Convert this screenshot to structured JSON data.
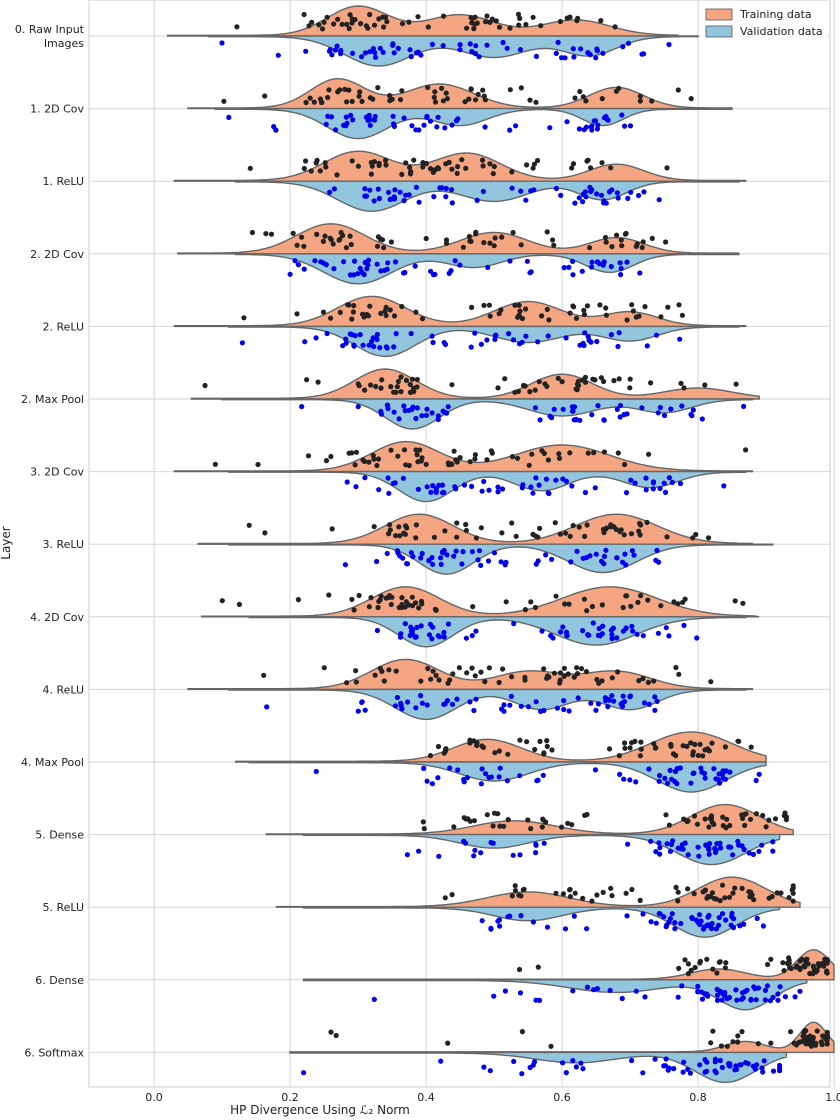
{
  "chart_data": {
    "type": "split-violin",
    "xlabel": "HP Divergence Using ℒ₂ Norm",
    "ylabel": "Layer",
    "xlim": [
      -0.1,
      1.0
    ],
    "xticks": [
      "0.0",
      "0.2",
      "0.4",
      "0.6",
      "0.8",
      "1.0"
    ],
    "grid": true,
    "legend_position": "top-right",
    "series": [
      {
        "name": "Training data",
        "color": "#f4a582",
        "point_color": "#222222"
      },
      {
        "name": "Validation data",
        "color": "#92c5de",
        "point_color": "#0000ee"
      }
    ],
    "layers": [
      {
        "label": "0. Raw Input\nImages",
        "train": {
          "range": [
            0.02,
            0.77
          ],
          "peaks": [
            [
              0.3,
              0.045,
              0.85
            ],
            [
              0.45,
              0.05,
              0.6
            ],
            [
              0.62,
              0.05,
              0.45
            ]
          ]
        },
        "val": {
          "range": [
            0.08,
            0.8
          ],
          "peaks": [
            [
              0.33,
              0.05,
              0.85
            ],
            [
              0.5,
              0.05,
              0.6
            ],
            [
              0.64,
              0.04,
              0.55
            ]
          ]
        }
      },
      {
        "label": "1. 2D Cov",
        "train": {
          "range": [
            0.05,
            0.85
          ],
          "peaks": [
            [
              0.27,
              0.04,
              0.85
            ],
            [
              0.42,
              0.05,
              0.7
            ],
            [
              0.68,
              0.04,
              0.6
            ]
          ]
        },
        "val": {
          "range": [
            0.09,
            0.85
          ],
          "peaks": [
            [
              0.3,
              0.045,
              0.9
            ],
            [
              0.45,
              0.04,
              0.5
            ],
            [
              0.66,
              0.03,
              0.5
            ]
          ]
        }
      },
      {
        "label": "1. ReLU",
        "train": {
          "range": [
            0.03,
            0.87
          ],
          "peaks": [
            [
              0.3,
              0.05,
              0.8
            ],
            [
              0.46,
              0.05,
              0.75
            ],
            [
              0.68,
              0.04,
              0.45
            ]
          ]
        },
        "val": {
          "range": [
            0.12,
            0.86
          ],
          "peaks": [
            [
              0.32,
              0.05,
              0.9
            ],
            [
              0.5,
              0.05,
              0.6
            ],
            [
              0.66,
              0.035,
              0.55
            ]
          ]
        }
      },
      {
        "label": "2. 2D Cov",
        "train": {
          "range": [
            0.035,
            0.86
          ],
          "peaks": [
            [
              0.26,
              0.05,
              0.85
            ],
            [
              0.5,
              0.05,
              0.6
            ],
            [
              0.68,
              0.04,
              0.45
            ]
          ]
        },
        "val": {
          "range": [
            0.12,
            0.86
          ],
          "peaks": [
            [
              0.3,
              0.05,
              0.9
            ],
            [
              0.47,
              0.04,
              0.4
            ],
            [
              0.67,
              0.035,
              0.55
            ]
          ]
        }
      },
      {
        "label": "2. ReLU",
        "train": {
          "range": [
            0.03,
            0.87
          ],
          "peaks": [
            [
              0.32,
              0.05,
              0.85
            ],
            [
              0.55,
              0.05,
              0.7
            ],
            [
              0.7,
              0.04,
              0.4
            ]
          ]
        },
        "val": {
          "range": [
            0.11,
            0.86
          ],
          "peaks": [
            [
              0.34,
              0.045,
              0.95
            ],
            [
              0.55,
              0.05,
              0.5
            ],
            [
              0.7,
              0.04,
              0.45
            ]
          ]
        }
      },
      {
        "label": "2. Max Pool",
        "train": {
          "range": [
            0.055,
            0.89
          ],
          "peaks": [
            [
              0.34,
              0.045,
              0.85
            ],
            [
              0.6,
              0.045,
              0.7
            ],
            [
              0.8,
              0.05,
              0.3
            ]
          ]
        },
        "val": {
          "range": [
            0.1,
            0.88
          ],
          "peaks": [
            [
              0.38,
              0.04,
              0.9
            ],
            [
              0.6,
              0.05,
              0.5
            ],
            [
              0.75,
              0.04,
              0.4
            ]
          ]
        }
      },
      {
        "label": "3. 2D Cov",
        "train": {
          "range": [
            0.03,
            0.88
          ],
          "peaks": [
            [
              0.37,
              0.05,
              0.9
            ],
            [
              0.6,
              0.07,
              0.8
            ]
          ]
        },
        "val": {
          "range": [
            0.11,
            0.87
          ],
          "peaks": [
            [
              0.4,
              0.04,
              0.95
            ],
            [
              0.57,
              0.04,
              0.6
            ],
            [
              0.73,
              0.04,
              0.5
            ]
          ]
        }
      },
      {
        "label": "3. ReLU",
        "train": {
          "range": [
            0.065,
            0.88
          ],
          "peaks": [
            [
              0.39,
              0.05,
              0.85
            ],
            [
              0.68,
              0.06,
              0.85
            ]
          ]
        },
        "val": {
          "range": [
            0.11,
            0.91
          ],
          "peaks": [
            [
              0.43,
              0.04,
              0.9
            ],
            [
              0.66,
              0.05,
              0.85
            ]
          ]
        }
      },
      {
        "label": "4. 2D Cov",
        "train": {
          "range": [
            0.07,
            0.89
          ],
          "peaks": [
            [
              0.37,
              0.05,
              0.95
            ],
            [
              0.67,
              0.07,
              0.95
            ]
          ]
        },
        "val": {
          "range": [
            0.14,
            0.87
          ],
          "peaks": [
            [
              0.4,
              0.04,
              0.85
            ],
            [
              0.65,
              0.06,
              0.8
            ]
          ]
        }
      },
      {
        "label": "4. ReLU",
        "train": {
          "range": [
            0.05,
            0.88
          ],
          "peaks": [
            [
              0.37,
              0.05,
              0.85
            ],
            [
              0.55,
              0.05,
              0.5
            ],
            [
              0.68,
              0.05,
              0.5
            ]
          ]
        },
        "val": {
          "range": [
            0.11,
            0.87
          ],
          "peaks": [
            [
              0.4,
              0.045,
              0.9
            ],
            [
              0.57,
              0.04,
              0.6
            ],
            [
              0.7,
              0.04,
              0.6
            ]
          ]
        }
      },
      {
        "label": "4. Max Pool",
        "train": {
          "range": [
            0.12,
            0.9
          ],
          "peaks": [
            [
              0.49,
              0.05,
              0.6
            ],
            [
              0.79,
              0.06,
              0.8
            ]
          ]
        },
        "val": {
          "range": [
            0.14,
            0.9
          ],
          "peaks": [
            [
              0.5,
              0.05,
              0.5
            ],
            [
              0.79,
              0.05,
              0.8
            ]
          ]
        }
      },
      {
        "label": "5. Dense",
        "train": {
          "range": [
            0.165,
            0.94
          ],
          "peaks": [
            [
              0.53,
              0.06,
              0.45
            ],
            [
              0.84,
              0.05,
              1.0
            ]
          ]
        },
        "val": {
          "range": [
            0.22,
            0.92
          ],
          "peaks": [
            [
              0.5,
              0.05,
              0.35
            ],
            [
              0.82,
              0.05,
              0.8
            ]
          ]
        }
      },
      {
        "label": "5. ReLU",
        "train": {
          "range": [
            0.18,
            0.95
          ],
          "peaks": [
            [
              0.55,
              0.06,
              0.5
            ],
            [
              0.85,
              0.05,
              1.0
            ]
          ]
        },
        "val": {
          "range": [
            0.22,
            0.92
          ],
          "peaks": [
            [
              0.55,
              0.05,
              0.35
            ],
            [
              0.81,
              0.045,
              0.8
            ]
          ]
        }
      },
      {
        "label": "6. Dense",
        "train": {
          "range": [
            0.22,
            1.0
          ],
          "peaks": [
            [
              0.83,
              0.04,
              0.35
            ],
            [
              0.97,
              0.025,
              1.0
            ]
          ]
        },
        "val": {
          "range": [
            0.22,
            0.96
          ],
          "peaks": [
            [
              0.68,
              0.07,
              0.35
            ],
            [
              0.87,
              0.04,
              0.85
            ]
          ]
        }
      },
      {
        "label": "6. Softmax",
        "train": {
          "range": [
            0.2,
            1.0
          ],
          "peaks": [
            [
              0.87,
              0.03,
              0.35
            ],
            [
              0.97,
              0.02,
              1.0
            ]
          ]
        },
        "val": {
          "range": [
            0.2,
            0.93
          ],
          "peaks": [
            [
              0.62,
              0.06,
              0.3
            ],
            [
              0.84,
              0.045,
              0.9
            ]
          ]
        }
      }
    ]
  }
}
